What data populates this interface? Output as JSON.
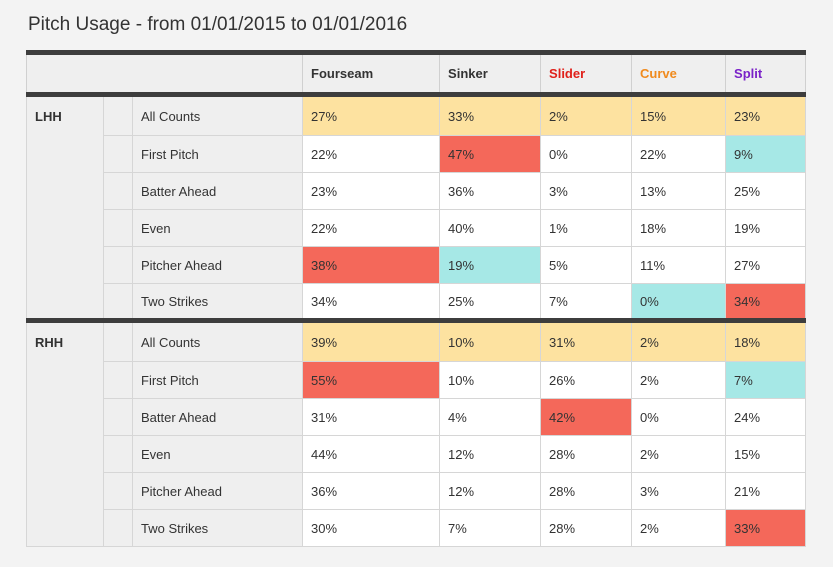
{
  "title": "Pitch Usage - from 01/01/2015 to 01/01/2016",
  "colors": {
    "all_counts_row": "#fde2a0",
    "high_cell": "#f4685a",
    "low_cell": "#a6e8e6",
    "header_border": "#3d3d3d"
  },
  "pitches": [
    {
      "label": "Fourseam",
      "color": "#333333"
    },
    {
      "label": "Sinker",
      "color": "#333333"
    },
    {
      "label": "Slider",
      "color": "#e0201a"
    },
    {
      "label": "Curve",
      "color": "#f08a1c"
    },
    {
      "label": "Split",
      "color": "#7a22c8"
    }
  ],
  "groups": [
    {
      "hand": "LHH",
      "rows": [
        {
          "count": "All Counts",
          "values": [
            "27%",
            "33%",
            "2%",
            "15%",
            "23%"
          ],
          "highlight": [
            "",
            "",
            "",
            "",
            ""
          ]
        },
        {
          "count": "First Pitch",
          "values": [
            "22%",
            "47%",
            "0%",
            "22%",
            "9%"
          ],
          "highlight": [
            "",
            "high",
            "",
            "",
            "low"
          ]
        },
        {
          "count": "Batter Ahead",
          "values": [
            "23%",
            "36%",
            "3%",
            "13%",
            "25%"
          ],
          "highlight": [
            "",
            "",
            "",
            "",
            ""
          ]
        },
        {
          "count": "Even",
          "values": [
            "22%",
            "40%",
            "1%",
            "18%",
            "19%"
          ],
          "highlight": [
            "",
            "",
            "",
            "",
            ""
          ]
        },
        {
          "count": "Pitcher Ahead",
          "values": [
            "38%",
            "19%",
            "5%",
            "11%",
            "27%"
          ],
          "highlight": [
            "high",
            "low",
            "",
            "",
            ""
          ]
        },
        {
          "count": "Two Strikes",
          "values": [
            "34%",
            "25%",
            "7%",
            "0%",
            "34%"
          ],
          "highlight": [
            "",
            "",
            "",
            "low",
            "high"
          ]
        }
      ]
    },
    {
      "hand": "RHH",
      "rows": [
        {
          "count": "All Counts",
          "values": [
            "39%",
            "10%",
            "31%",
            "2%",
            "18%"
          ],
          "highlight": [
            "",
            "",
            "",
            "",
            ""
          ]
        },
        {
          "count": "First Pitch",
          "values": [
            "55%",
            "10%",
            "26%",
            "2%",
            "7%"
          ],
          "highlight": [
            "high",
            "",
            "",
            "",
            "low"
          ]
        },
        {
          "count": "Batter Ahead",
          "values": [
            "31%",
            "4%",
            "42%",
            "0%",
            "24%"
          ],
          "highlight": [
            "",
            "",
            "high",
            "",
            ""
          ]
        },
        {
          "count": "Even",
          "values": [
            "44%",
            "12%",
            "28%",
            "2%",
            "15%"
          ],
          "highlight": [
            "",
            "",
            "",
            "",
            ""
          ]
        },
        {
          "count": "Pitcher Ahead",
          "values": [
            "36%",
            "12%",
            "28%",
            "3%",
            "21%"
          ],
          "highlight": [
            "",
            "",
            "",
            "",
            ""
          ]
        },
        {
          "count": "Two Strikes",
          "values": [
            "30%",
            "7%",
            "28%",
            "2%",
            "33%"
          ],
          "highlight": [
            "",
            "",
            "",
            "",
            "high"
          ]
        }
      ]
    }
  ]
}
